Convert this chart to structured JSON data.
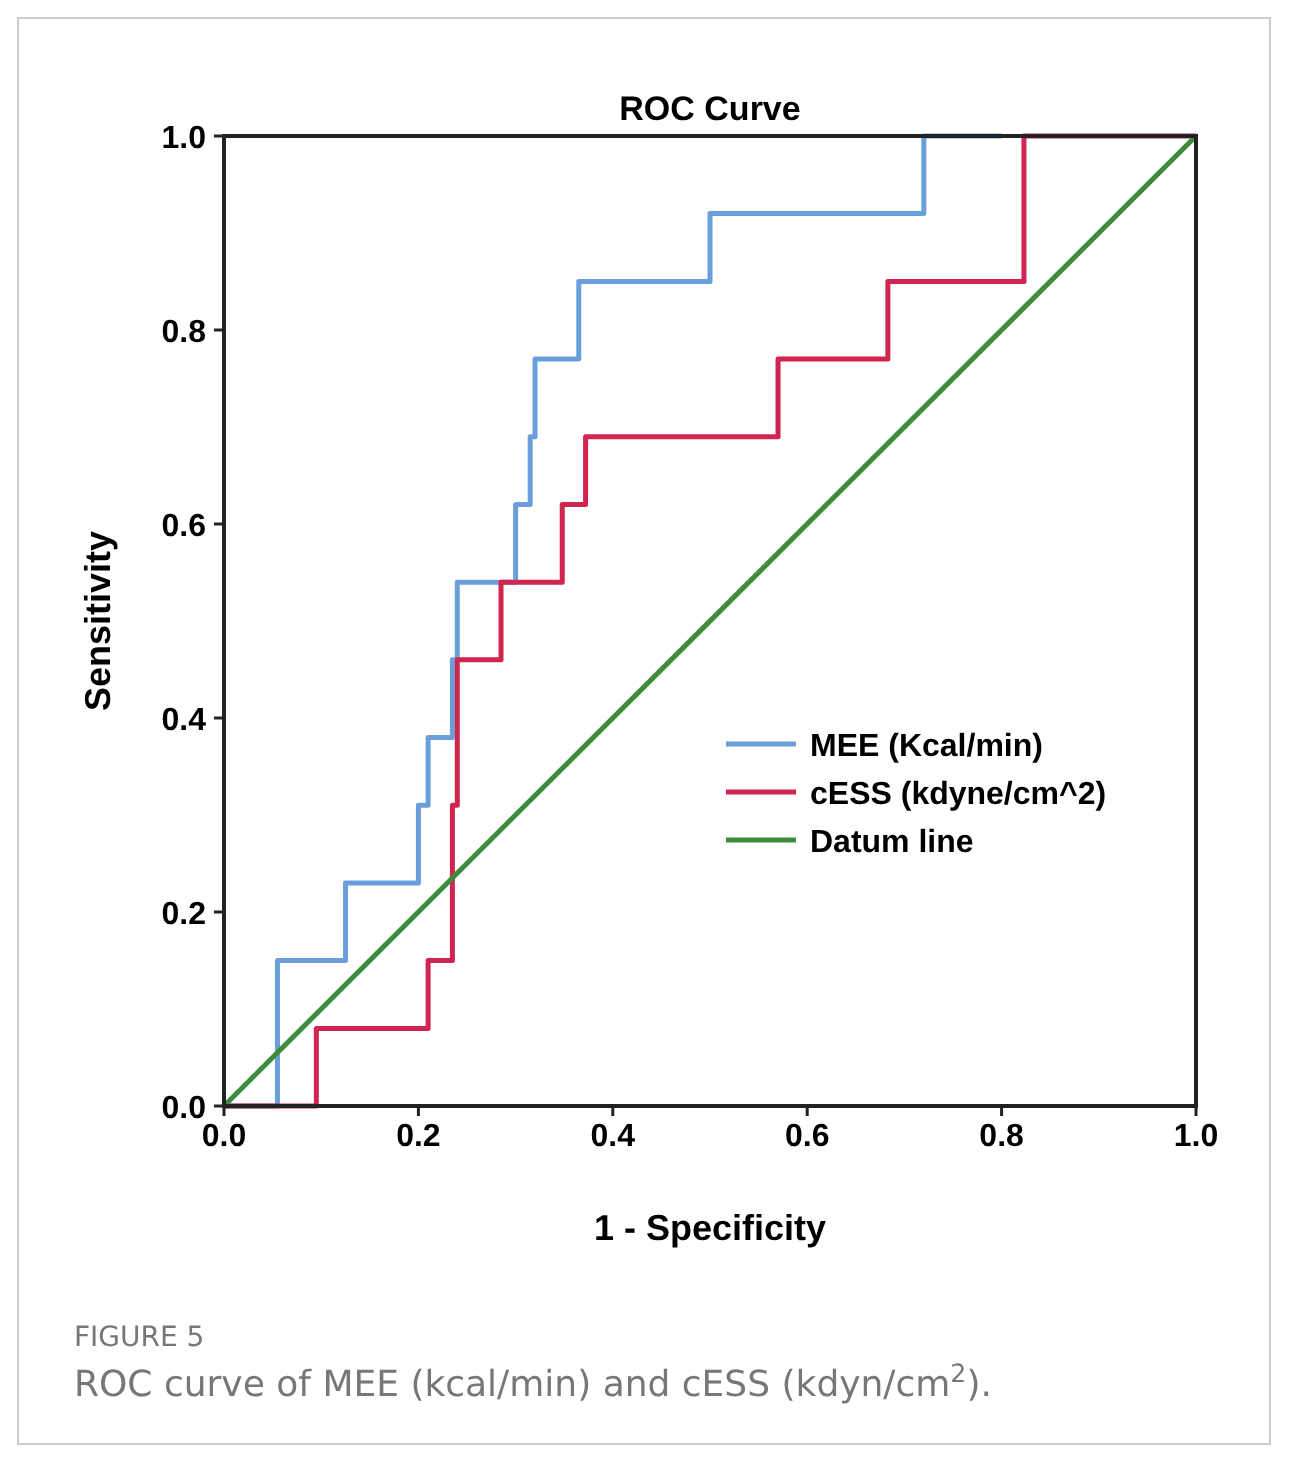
{
  "chart_data": {
    "type": "line",
    "title": "ROC Curve",
    "xlabel": "1 - Specificity",
    "ylabel": "Sensitivity",
    "xlim": [
      0,
      1
    ],
    "ylim": [
      0,
      1
    ],
    "xticks": [
      {
        "value": 0,
        "label": "0.0"
      },
      {
        "value": 0.2,
        "label": "0.2"
      },
      {
        "value": 0.4,
        "label": "0.4"
      },
      {
        "value": 0.6,
        "label": "0.6"
      },
      {
        "value": 0.8,
        "label": "0.8"
      },
      {
        "value": 1,
        "label": "1.0"
      }
    ],
    "yticks": [
      {
        "value": 0,
        "label": "0.0"
      },
      {
        "value": 0.2,
        "label": "0.2"
      },
      {
        "value": 0.4,
        "label": "0.4"
      },
      {
        "value": 0.6,
        "label": "0.6"
      },
      {
        "value": 0.8,
        "label": "0.8"
      },
      {
        "value": 1,
        "label": "1.0"
      }
    ],
    "legend": "right",
    "grid": false,
    "marker": "none",
    "line_style": "solid",
    "series": [
      {
        "name": "MEE (Kcal/min)",
        "color": "#6a9fdc",
        "x": [
          0,
          0.055,
          0.055,
          0.125,
          0.125,
          0.2,
          0.2,
          0.21,
          0.21,
          0.235,
          0.235,
          0.24,
          0.24,
          0.3,
          0.3,
          0.315,
          0.315,
          0.32,
          0.32,
          0.365,
          0.365,
          0.5,
          0.5,
          0.72,
          0.72,
          0.8
        ],
        "values": [
          0,
          0,
          0.15,
          0.15,
          0.23,
          0.23,
          0.31,
          0.31,
          0.38,
          0.38,
          0.46,
          0.46,
          0.54,
          0.54,
          0.62,
          0.62,
          0.69,
          0.69,
          0.77,
          0.77,
          0.85,
          0.85,
          0.92,
          0.92,
          1,
          1
        ]
      },
      {
        "name": "cESS (kdyne/cm^2)",
        "color": "#d0254f",
        "x": [
          0,
          0.095,
          0.095,
          0.21,
          0.21,
          0.235,
          0.235,
          0.24,
          0.24,
          0.285,
          0.285,
          0.348,
          0.348,
          0.372,
          0.372,
          0.57,
          0.57,
          0.683,
          0.683,
          0.823,
          0.823,
          1
        ],
        "values": [
          0,
          0,
          0.08,
          0.08,
          0.15,
          0.15,
          0.31,
          0.31,
          0.46,
          0.46,
          0.54,
          0.54,
          0.62,
          0.62,
          0.69,
          0.69,
          0.77,
          0.77,
          0.85,
          0.85,
          1,
          1
        ]
      },
      {
        "name": "Datum line",
        "color": "#3d8c3d",
        "x": [
          0,
          1
        ],
        "values": [
          0,
          1
        ]
      }
    ],
    "annotations": [
      "FIGURE 5",
      "ROC curve of MEE (kcal/min) and cESS (kdyn/cm$^{2}$)."
    ]
  }
}
